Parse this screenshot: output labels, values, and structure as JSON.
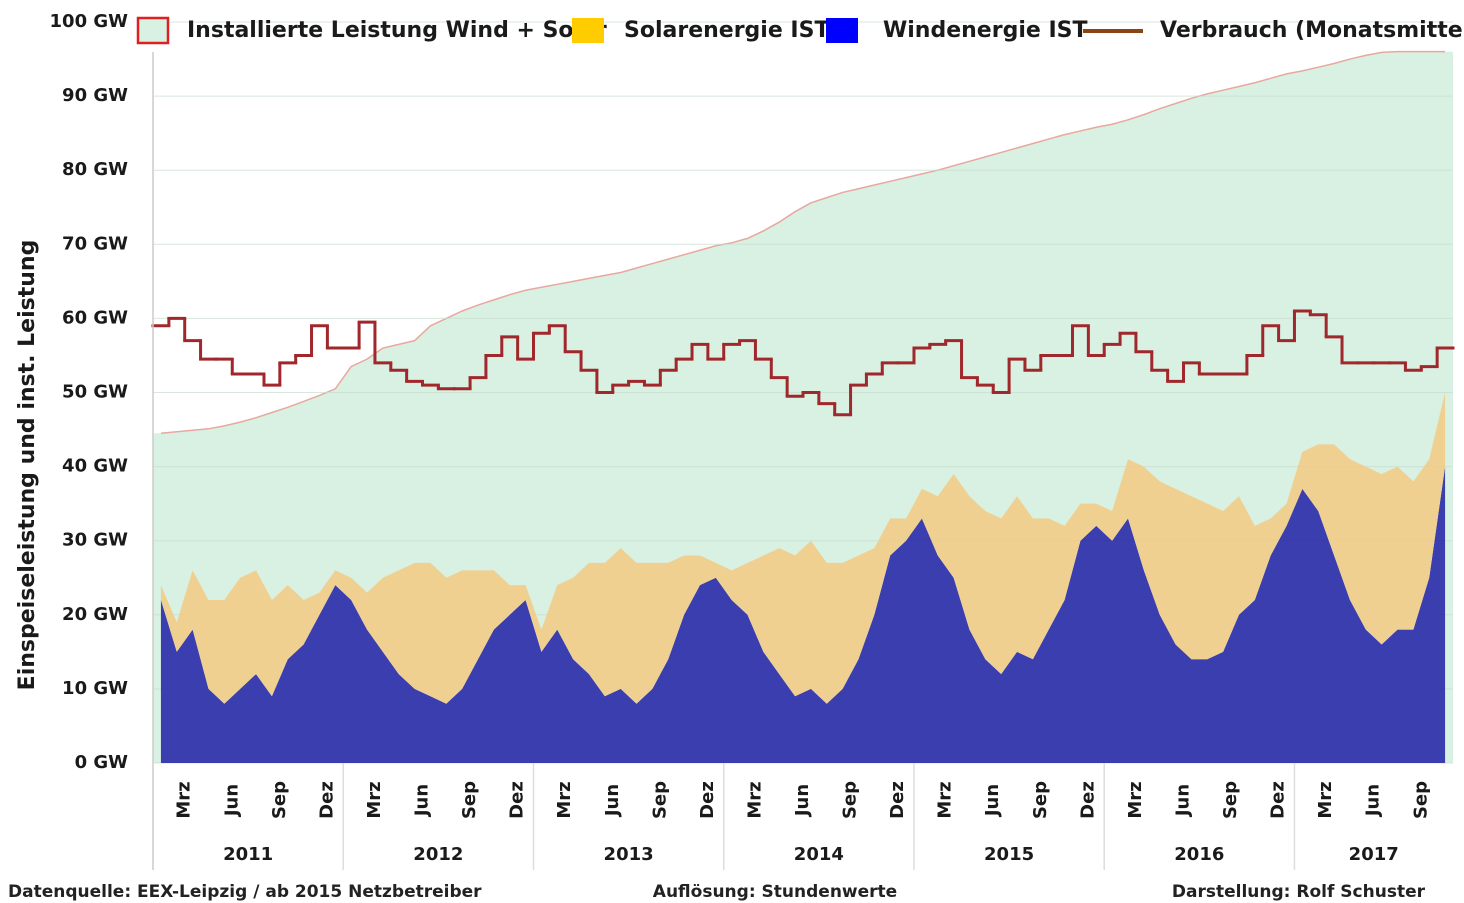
{
  "chart_data": {
    "type": "area",
    "y_axis_label": "Einspeiseleistung und inst. Leistung",
    "footer": {
      "source": "Datenquelle:  EEX-Leipzig  /  ab 2015 Netzbetreiber",
      "resolution": "Auflösung: Stundenwerte",
      "author": "Darstellung: Rolf Schuster"
    },
    "x": [
      "2011-01",
      "2011-02",
      "2011-03",
      "2011-04",
      "2011-05",
      "2011-06",
      "2011-07",
      "2011-08",
      "2011-09",
      "2011-10",
      "2011-11",
      "2011-12",
      "2012-01",
      "2012-02",
      "2012-03",
      "2012-04",
      "2012-05",
      "2012-06",
      "2012-07",
      "2012-08",
      "2012-09",
      "2012-10",
      "2012-11",
      "2012-12",
      "2013-01",
      "2013-02",
      "2013-03",
      "2013-04",
      "2013-05",
      "2013-06",
      "2013-07",
      "2013-08",
      "2013-09",
      "2013-10",
      "2013-11",
      "2013-12",
      "2014-01",
      "2014-02",
      "2014-03",
      "2014-04",
      "2014-05",
      "2014-06",
      "2014-07",
      "2014-08",
      "2014-09",
      "2014-10",
      "2014-11",
      "2014-12",
      "2015-01",
      "2015-02",
      "2015-03",
      "2015-04",
      "2015-05",
      "2015-06",
      "2015-07",
      "2015-08",
      "2015-09",
      "2015-10",
      "2015-11",
      "2015-12",
      "2016-01",
      "2016-02",
      "2016-03",
      "2016-04",
      "2016-05",
      "2016-06",
      "2016-07",
      "2016-08",
      "2016-09",
      "2016-10",
      "2016-11",
      "2016-12",
      "2017-01",
      "2017-02",
      "2017-03",
      "2017-04",
      "2017-05",
      "2017-06",
      "2017-07",
      "2017-08",
      "2017-09",
      "2017-10"
    ],
    "xlim": [
      "2011-01",
      "2017-10"
    ],
    "xticks": [
      {
        "value": "2011-03",
        "label": "Mrz"
      },
      {
        "value": "2011-06",
        "label": "Jun"
      },
      {
        "value": "2011-09",
        "label": "Sep"
      },
      {
        "value": "2011-12",
        "label": "Dez"
      },
      {
        "value": "2012-03",
        "label": "Mrz"
      },
      {
        "value": "2012-06",
        "label": "Jun"
      },
      {
        "value": "2012-09",
        "label": "Sep"
      },
      {
        "value": "2012-12",
        "label": "Dez"
      },
      {
        "value": "2013-03",
        "label": "Mrz"
      },
      {
        "value": "2013-06",
        "label": "Jun"
      },
      {
        "value": "2013-09",
        "label": "Sep"
      },
      {
        "value": "2013-12",
        "label": "Dez"
      },
      {
        "value": "2014-03",
        "label": "Mrz"
      },
      {
        "value": "2014-06",
        "label": "Jun"
      },
      {
        "value": "2014-09",
        "label": "Sep"
      },
      {
        "value": "2014-12",
        "label": "Dez"
      },
      {
        "value": "2015-03",
        "label": "Mrz"
      },
      {
        "value": "2015-06",
        "label": "Jun"
      },
      {
        "value": "2015-09",
        "label": "Sep"
      },
      {
        "value": "2015-12",
        "label": "Dez"
      },
      {
        "value": "2016-03",
        "label": "Mrz"
      },
      {
        "value": "2016-06",
        "label": "Jun"
      },
      {
        "value": "2016-09",
        "label": "Sep"
      },
      {
        "value": "2016-12",
        "label": "Dez"
      },
      {
        "value": "2017-03",
        "label": "Mrz"
      },
      {
        "value": "2017-06",
        "label": "Jun"
      },
      {
        "value": "2017-09",
        "label": "Sep"
      }
    ],
    "years": [
      "2011",
      "2012",
      "2013",
      "2014",
      "2015",
      "2016",
      "2017"
    ],
    "ylim": [
      0,
      100
    ],
    "yticks": [
      {
        "value": 0,
        "label": "0 GW"
      },
      {
        "value": 10,
        "label": "10 GW"
      },
      {
        "value": 20,
        "label": "20 GW"
      },
      {
        "value": 30,
        "label": "30 GW"
      },
      {
        "value": 40,
        "label": "40 GW"
      },
      {
        "value": 50,
        "label": "50 GW"
      },
      {
        "value": 60,
        "label": "60 GW"
      },
      {
        "value": 70,
        "label": "70 GW"
      },
      {
        "value": 80,
        "label": "80 GW"
      },
      {
        "value": 90,
        "label": "90 GW"
      },
      {
        "value": 100,
        "label": "100 GW"
      }
    ],
    "grid": true,
    "series": [
      {
        "name": "Installierte Leistung Wind + Solar",
        "style": "area",
        "color": "#d8f1e2",
        "edge_color": "#e02020",
        "line_color": "#e8a8a0",
        "values": [
          44.5,
          44.7,
          44.9,
          45.1,
          45.5,
          46.0,
          46.6,
          47.3,
          48.0,
          48.8,
          49.6,
          50.5,
          53.5,
          54.5,
          56.0,
          56.5,
          57.0,
          59.0,
          60.0,
          61.0,
          61.8,
          62.5,
          63.2,
          63.8,
          64.2,
          64.6,
          65.0,
          65.4,
          65.8,
          66.2,
          66.8,
          67.4,
          68.0,
          68.6,
          69.2,
          69.8,
          70.2,
          70.8,
          71.8,
          73.0,
          74.4,
          75.6,
          76.3,
          77.0,
          77.5,
          78.0,
          78.5,
          79.0,
          79.5,
          80.0,
          80.6,
          81.2,
          81.8,
          82.4,
          83.0,
          83.6,
          84.2,
          84.8,
          85.3,
          85.8,
          86.2,
          86.8,
          87.5,
          88.3,
          89.0,
          89.7,
          90.3,
          90.8,
          91.3,
          91.8,
          92.4,
          93.0,
          93.4,
          93.9,
          94.4,
          95.0,
          95.5,
          95.9,
          96.0,
          96.0,
          96.0,
          96.0
        ]
      },
      {
        "name": "Solarenergie IST",
        "style": "stack",
        "color": "#ffcc00",
        "fill_color": "#f2cc88",
        "values": [
          2,
          4,
          8,
          12,
          14,
          15,
          14,
          13,
          10,
          6,
          3,
          2,
          3,
          5,
          10,
          14,
          17,
          18,
          17,
          16,
          12,
          8,
          4,
          2,
          3,
          6,
          11,
          15,
          18,
          19,
          19,
          17,
          13,
          8,
          4,
          2,
          4,
          7,
          13,
          17,
          19,
          20,
          19,
          17,
          14,
          9,
          5,
          3,
          4,
          8,
          14,
          18,
          20,
          21,
          21,
          19,
          15,
          10,
          5,
          3,
          4,
          8,
          14,
          18,
          21,
          22,
          21,
          19,
          16,
          10,
          5,
          3,
          5,
          9,
          15,
          19,
          22,
          23,
          22,
          20,
          16,
          10
        ]
      },
      {
        "name": "Windenergie IST",
        "style": "stack",
        "color": "#0000ff",
        "fill_color": "#2a2aaa",
        "values": [
          22,
          15,
          18,
          10,
          8,
          10,
          12,
          9,
          14,
          16,
          20,
          24,
          22,
          18,
          15,
          12,
          10,
          9,
          8,
          10,
          14,
          18,
          20,
          22,
          15,
          18,
          14,
          12,
          9,
          10,
          8,
          10,
          14,
          20,
          24,
          25,
          22,
          20,
          15,
          12,
          9,
          10,
          8,
          10,
          14,
          20,
          28,
          30,
          33,
          28,
          25,
          18,
          14,
          12,
          15,
          14,
          18,
          22,
          30,
          32,
          30,
          33,
          26,
          20,
          16,
          14,
          14,
          15,
          20,
          22,
          28,
          32,
          37,
          34,
          28,
          22,
          18,
          16,
          18,
          18,
          25,
          40
        ]
      },
      {
        "name": "Verbrauch (Monatsmittel)",
        "style": "step",
        "color": "#a0282c",
        "legend_color": "#8b4513",
        "values": [
          59,
          60,
          57,
          54.5,
          54.5,
          52.5,
          52.5,
          51,
          54,
          55,
          59,
          56,
          56,
          59.5,
          54,
          53,
          51.5,
          51,
          50.5,
          50.5,
          52,
          55,
          57.5,
          54.5,
          58,
          59,
          55.5,
          53,
          50,
          51,
          51.5,
          51,
          53,
          54.5,
          56.5,
          54.5,
          56.5,
          57,
          54.5,
          52,
          49.5,
          50,
          48.5,
          47,
          51,
          52.5,
          54,
          54,
          56,
          56.5,
          57,
          52,
          51,
          50,
          54.5,
          53,
          55,
          55,
          59,
          55,
          56.5,
          58,
          55.5,
          53,
          51.5,
          54,
          52.5,
          52.5,
          52.5,
          55,
          59,
          57,
          61,
          60.5,
          57.5,
          54,
          54,
          54,
          54,
          53,
          53.5,
          56
        ]
      }
    ]
  }
}
